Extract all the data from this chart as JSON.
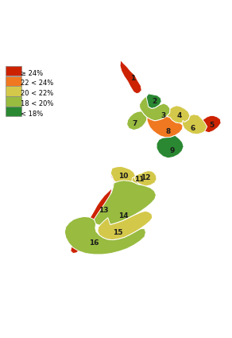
{
  "legend_labels": [
    "≥ 24%",
    "22 < 24%",
    "20 < 22%",
    "18 < 20%",
    "< 18%"
  ],
  "legend_colors": [
    "#cc2200",
    "#f07820",
    "#d4c84a",
    "#98bb40",
    "#2a8832"
  ],
  "region_colors": {
    "1": "#cc2200",
    "2": "#2a8832",
    "3": "#98bb40",
    "4": "#d4c84a",
    "5": "#cc2200",
    "6": "#d4c84a",
    "7": "#98bb40",
    "8": "#f07820",
    "9": "#2a8832",
    "10": "#d4c84a",
    "11": "#d4c84a",
    "12": "#d4c84a",
    "13": "#cc2200",
    "14": "#98bb40",
    "15": "#d4c84a",
    "16": "#98bb40"
  },
  "background_color": "#ffffff",
  "outline_color": "#ffffff",
  "label_fontsize": 6.5,
  "label_color": "#1a1a1a",
  "legend_fontsize": 6.0
}
